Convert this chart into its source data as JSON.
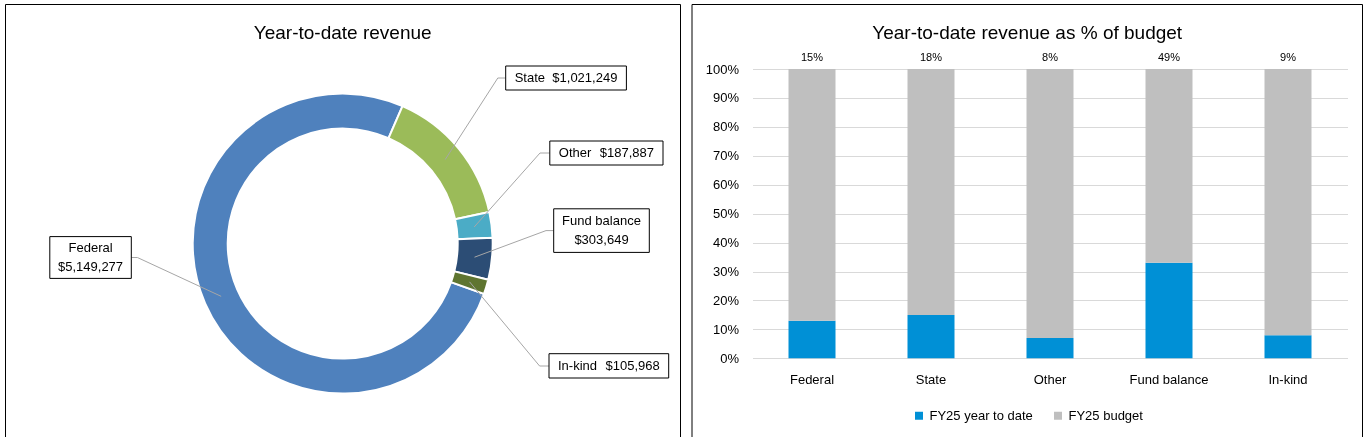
{
  "chart_data": [
    {
      "type": "donut",
      "title": "Year-to-date revenue",
      "categories": [
        "Federal",
        "State",
        "Other",
        "Fund balance",
        "In-kind"
      ],
      "values": [
        5149277,
        1021249,
        187887,
        303649,
        105968
      ],
      "colors": [
        "#4f81bd",
        "#9bbb59",
        "#4bacc6",
        "#2c4d75",
        "#5f7530"
      ],
      "value_labels": [
        "$5,149,277",
        "$1,021,249",
        "$187,887",
        "$303,649",
        "$105,968"
      ]
    },
    {
      "type": "bar",
      "title": "Year-to-date revenue as % of budget",
      "categories": [
        "Federal",
        "State",
        "Other",
        "Fund balance",
        "In-kind"
      ],
      "stacked": true,
      "series": [
        {
          "name": "FY25 year to date",
          "color": "#0090d6",
          "values": [
            13,
            15,
            7,
            33,
            8
          ]
        },
        {
          "name": "FY25 budget",
          "color": "#bfbfbf",
          "values": [
            87,
            85,
            93,
            67,
            92
          ]
        }
      ],
      "ylim": [
        0,
        100
      ],
      "yticks": [
        {
          "value": 0,
          "label": "0%"
        },
        {
          "value": 10,
          "label": "10%"
        },
        {
          "value": 20,
          "label": "20%"
        },
        {
          "value": 30,
          "label": "30%"
        },
        {
          "value": 40,
          "label": "40%"
        },
        {
          "value": 50,
          "label": "50%"
        },
        {
          "value": 60,
          "label": "60%"
        },
        {
          "value": 70,
          "label": "70%"
        },
        {
          "value": 80,
          "label": "80%"
        },
        {
          "value": 90,
          "label": "90%"
        },
        {
          "value": 100,
          "label": "100%"
        }
      ],
      "grid": "y",
      "legend": "bottom",
      "annotations": [
        {
          "text": "15%",
          "x": "Federal",
          "y": 100
        },
        {
          "text": "18%",
          "x": "State",
          "y": 100
        },
        {
          "text": "8%",
          "x": "Other",
          "y": 100
        },
        {
          "text": "49%",
          "x": "Fund balance",
          "y": 100
        },
        {
          "text": "9%",
          "x": "In-kind",
          "y": 100
        }
      ]
    }
  ]
}
